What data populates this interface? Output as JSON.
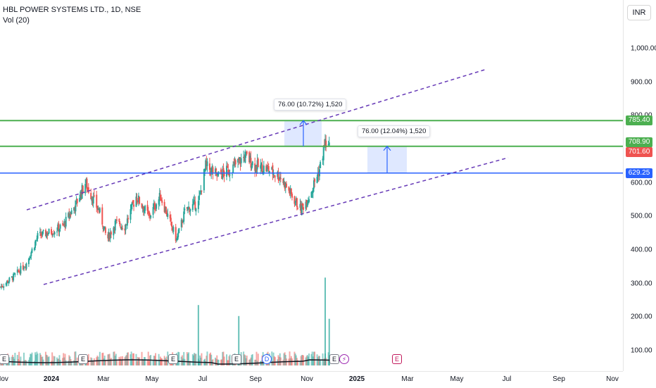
{
  "legend": {
    "symbol": "HBL POWER SYSTEMS LTD., 1D, NSE",
    "volume": "Vol (20)"
  },
  "currency": "INR",
  "colors": {
    "up": "#26a69a",
    "down": "#ef5350",
    "channel": "#673ab7",
    "green_line": "#4caf50",
    "blue_line": "#2962ff",
    "measure_fill": "#2962ff",
    "volume_up": "#26a69a",
    "volume_down": "#ef5350"
  },
  "price_axis": {
    "ticks": [
      "1,000.00",
      "900.00",
      "800.00",
      "700.00",
      "600.00",
      "500.00",
      "400.00",
      "300.00",
      "200.00",
      "100.00"
    ],
    "labels": [
      {
        "value": "785.40",
        "color": "#4caf50"
      },
      {
        "value": "708.90",
        "color": "#4caf50"
      },
      {
        "value": "701.60",
        "color": "#ef5350"
      },
      {
        "value": "629.25",
        "color": "#2962ff"
      }
    ]
  },
  "time_axis": {
    "ticks": [
      {
        "label": "Nov",
        "bold": false
      },
      {
        "label": "2024",
        "bold": true
      },
      {
        "label": "Mar",
        "bold": false
      },
      {
        "label": "May",
        "bold": false
      },
      {
        "label": "Jul",
        "bold": false
      },
      {
        "label": "Sep",
        "bold": false
      },
      {
        "label": "Nov",
        "bold": false
      },
      {
        "label": "2025",
        "bold": true
      },
      {
        "label": "Mar",
        "bold": false
      },
      {
        "label": "May",
        "bold": false
      },
      {
        "label": "Jul",
        "bold": false
      },
      {
        "label": "Sep",
        "bold": false
      },
      {
        "label": "Nov",
        "bold": false
      }
    ]
  },
  "annotations": {
    "measure1": "76.00 (10.72%) 1,520",
    "measure2": "76.00 (12.04%) 1,520"
  },
  "event_markers": [
    {
      "label": "E",
      "kind": "e"
    },
    {
      "label": "E",
      "kind": "e"
    },
    {
      "label": "E",
      "kind": "e"
    },
    {
      "label": "E",
      "kind": "e"
    },
    {
      "label": "D",
      "kind": "d"
    },
    {
      "label": "E",
      "kind": "e"
    },
    {
      "label": "⚡",
      "kind": "flash"
    },
    {
      "label": "E",
      "kind": "e2"
    }
  ],
  "chart_data": {
    "type": "candlestick",
    "symbol": "HBL POWER SYSTEMS LTD.",
    "interval": "1D",
    "exchange": "NSE",
    "ylim": [
      60,
      1080
    ],
    "key_levels": [
      785.4,
      708.9,
      629.25
    ],
    "last_price": 701.6,
    "close_path": [
      [
        "2023-10-30",
        290
      ],
      [
        "2023-11-15",
        320
      ],
      [
        "2023-12-01",
        360
      ],
      [
        "2023-12-15",
        440
      ],
      [
        "2024-01-01",
        455
      ],
      [
        "2024-01-15",
        470
      ],
      [
        "2024-02-01",
        540
      ],
      [
        "2024-02-12",
        600
      ],
      [
        "2024-02-20",
        560
      ],
      [
        "2024-03-01",
        510
      ],
      [
        "2024-03-10",
        430
      ],
      [
        "2024-03-20",
        480
      ],
      [
        "2024-04-01",
        470
      ],
      [
        "2024-04-15",
        560
      ],
      [
        "2024-05-01",
        500
      ],
      [
        "2024-05-15",
        560
      ],
      [
        "2024-06-04",
        430
      ],
      [
        "2024-06-15",
        520
      ],
      [
        "2024-07-01",
        540
      ],
      [
        "2024-07-10",
        650
      ],
      [
        "2024-07-25",
        620
      ],
      [
        "2024-08-10",
        640
      ],
      [
        "2024-08-28",
        680
      ],
      [
        "2024-09-10",
        650
      ],
      [
        "2024-09-25",
        640
      ],
      [
        "2024-10-10",
        620
      ],
      [
        "2024-10-25",
        560
      ],
      [
        "2024-11-05",
        520
      ],
      [
        "2024-11-15",
        560
      ],
      [
        "2024-11-28",
        640
      ],
      [
        "2024-12-05",
        720
      ],
      [
        "2024-12-10",
        701.6
      ]
    ],
    "volume_spikes_k": [
      [
        "2024-07-01",
        220
      ],
      [
        "2024-08-20",
        180
      ],
      [
        "2024-12-05",
        320
      ],
      [
        "2024-12-10",
        170
      ]
    ],
    "measure_ranges": [
      {
        "change": 76.0,
        "change_pct": 10.72,
        "bars": 1520
      },
      {
        "change": 76.0,
        "change_pct": 12.04,
        "bars": 1520
      }
    ]
  }
}
